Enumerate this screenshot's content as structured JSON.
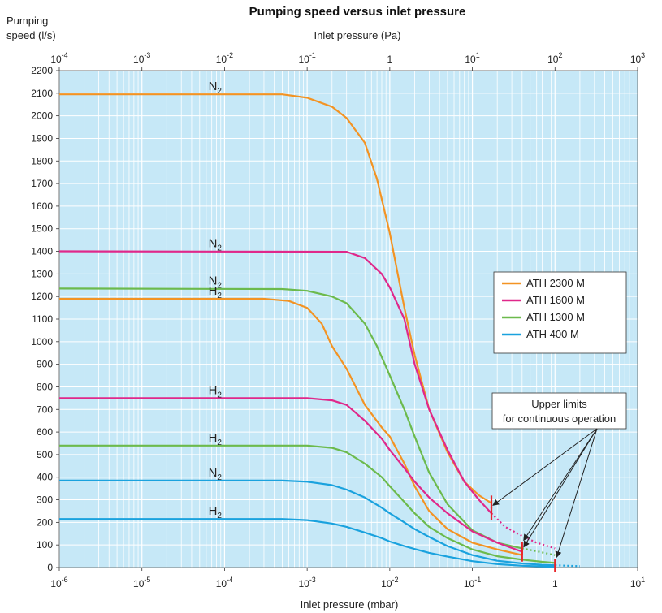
{
  "chart_data": {
    "type": "line",
    "title": "Pumping speed versus inlet pressure",
    "ylabel_line1": "Pumping",
    "ylabel_line2": "speed (l/s)",
    "xlabel_bottom": "Inlet pressure (mbar)",
    "xlabel_top": "Inlet pressure (Pa)",
    "x_scale": "log",
    "xlim": [
      1e-06,
      10
    ],
    "ylim": [
      0,
      2200
    ],
    "yticks": [
      0,
      100,
      200,
      300,
      400,
      500,
      600,
      700,
      800,
      900,
      1000,
      1100,
      1200,
      1300,
      1400,
      1500,
      1600,
      1700,
      1800,
      1900,
      2000,
      2100,
      2200
    ],
    "xticks_bottom": [
      {
        "base": "10",
        "exp": "-6"
      },
      {
        "base": "10",
        "exp": "-5"
      },
      {
        "base": "10",
        "exp": "-4"
      },
      {
        "base": "10",
        "exp": "-3"
      },
      {
        "base": "10",
        "exp": "-2"
      },
      {
        "base": "10",
        "exp": "-1"
      },
      {
        "base": "1",
        "exp": ""
      },
      {
        "base": "10",
        "exp": "1"
      }
    ],
    "xticks_top": [
      {
        "base": "10",
        "exp": "-4"
      },
      {
        "base": "10",
        "exp": "-3"
      },
      {
        "base": "10",
        "exp": "-2"
      },
      {
        "base": "10",
        "exp": "-1"
      },
      {
        "base": "1",
        "exp": ""
      },
      {
        "base": "10",
        "exp": "1"
      },
      {
        "base": "10",
        "exp": "2"
      },
      {
        "base": "10",
        "exp": "3"
      }
    ],
    "grid": true,
    "background": "#c6e8f7",
    "legend_position": "right",
    "legend": [
      {
        "name": "ATH 2300 M",
        "color": "#f39323"
      },
      {
        "name": "ATH 1600 M",
        "color": "#e0288a"
      },
      {
        "name": "ATH 1300 M",
        "color": "#6cba4c"
      },
      {
        "name": "ATH 400 M",
        "color": "#1aa2de"
      }
    ],
    "annotation": {
      "line1": "Upper limits",
      "line2": "for continuous operation"
    },
    "series": [
      {
        "model": "ATH 2300 M",
        "gas": "N2",
        "color": "#f39323",
        "points": [
          [
            1e-06,
            2095
          ],
          [
            0.0005,
            2095
          ],
          [
            0.001,
            2080
          ],
          [
            0.002,
            2040
          ],
          [
            0.003,
            1990
          ],
          [
            0.005,
            1880
          ],
          [
            0.007,
            1720
          ],
          [
            0.01,
            1480
          ],
          [
            0.015,
            1150
          ],
          [
            0.02,
            940
          ],
          [
            0.03,
            700
          ],
          [
            0.05,
            510
          ],
          [
            0.08,
            380
          ],
          [
            0.12,
            320
          ],
          [
            0.17,
            285
          ]
        ],
        "dotted": []
      },
      {
        "model": "ATH 1600 M",
        "gas": "N2",
        "color": "#e0288a",
        "points": [
          [
            1e-06,
            1400
          ],
          [
            0.003,
            1398
          ],
          [
            0.005,
            1370
          ],
          [
            0.008,
            1300
          ],
          [
            0.01,
            1240
          ],
          [
            0.015,
            1100
          ],
          [
            0.02,
            900
          ],
          [
            0.03,
            700
          ],
          [
            0.05,
            520
          ],
          [
            0.08,
            380
          ],
          [
            0.12,
            300
          ],
          [
            0.17,
            240
          ]
        ],
        "dotted": [
          [
            0.17,
            240
          ],
          [
            0.25,
            180
          ],
          [
            0.4,
            140
          ],
          [
            0.6,
            110
          ],
          [
            1,
            85
          ]
        ]
      },
      {
        "model": "ATH 1300 M",
        "gas": "N2",
        "color": "#6cba4c",
        "points": [
          [
            1e-06,
            1235
          ],
          [
            0.0005,
            1233
          ],
          [
            0.001,
            1225
          ],
          [
            0.002,
            1200
          ],
          [
            0.003,
            1170
          ],
          [
            0.005,
            1080
          ],
          [
            0.007,
            980
          ],
          [
            0.01,
            850
          ],
          [
            0.015,
            700
          ],
          [
            0.02,
            580
          ],
          [
            0.03,
            420
          ],
          [
            0.05,
            280
          ],
          [
            0.1,
            165
          ],
          [
            0.2,
            110
          ],
          [
            0.3,
            95
          ],
          [
            0.4,
            85
          ]
        ],
        "dotted": [
          [
            0.4,
            85
          ],
          [
            0.6,
            72
          ],
          [
            1,
            55
          ]
        ]
      },
      {
        "model": "ATH 2300 M",
        "gas": "H2",
        "color": "#f39323",
        "points": [
          [
            1e-06,
            1190
          ],
          [
            0.0003,
            1190
          ],
          [
            0.0006,
            1180
          ],
          [
            0.001,
            1150
          ],
          [
            0.0015,
            1080
          ],
          [
            0.002,
            980
          ],
          [
            0.003,
            880
          ],
          [
            0.005,
            720
          ],
          [
            0.008,
            620
          ],
          [
            0.01,
            580
          ],
          [
            0.015,
            460
          ],
          [
            0.02,
            360
          ],
          [
            0.03,
            250
          ],
          [
            0.05,
            170
          ],
          [
            0.1,
            110
          ],
          [
            0.2,
            80
          ],
          [
            0.4,
            55
          ]
        ],
        "dotted": []
      },
      {
        "model": "ATH 1600 M",
        "gas": "H2",
        "color": "#e0288a",
        "points": [
          [
            1e-06,
            750
          ],
          [
            0.001,
            750
          ],
          [
            0.002,
            740
          ],
          [
            0.003,
            720
          ],
          [
            0.005,
            650
          ],
          [
            0.008,
            570
          ],
          [
            0.01,
            520
          ],
          [
            0.015,
            440
          ],
          [
            0.02,
            380
          ],
          [
            0.03,
            310
          ],
          [
            0.05,
            240
          ],
          [
            0.1,
            160
          ],
          [
            0.2,
            110
          ],
          [
            0.4,
            70
          ]
        ],
        "dotted": []
      },
      {
        "model": "ATH 1300 M",
        "gas": "H2",
        "color": "#6cba4c",
        "points": [
          [
            1e-06,
            540
          ],
          [
            0.001,
            540
          ],
          [
            0.002,
            530
          ],
          [
            0.003,
            510
          ],
          [
            0.005,
            460
          ],
          [
            0.008,
            400
          ],
          [
            0.01,
            360
          ],
          [
            0.015,
            290
          ],
          [
            0.02,
            240
          ],
          [
            0.03,
            180
          ],
          [
            0.05,
            130
          ],
          [
            0.1,
            80
          ],
          [
            0.2,
            50
          ],
          [
            0.4,
            35
          ],
          [
            0.7,
            25
          ],
          [
            1,
            20
          ]
        ],
        "dotted": []
      },
      {
        "model": "ATH 400 M",
        "gas": "N2",
        "color": "#1aa2de",
        "points": [
          [
            1e-06,
            385
          ],
          [
            0.0005,
            385
          ],
          [
            0.001,
            380
          ],
          [
            0.002,
            365
          ],
          [
            0.003,
            345
          ],
          [
            0.005,
            310
          ],
          [
            0.008,
            265
          ],
          [
            0.01,
            240
          ],
          [
            0.015,
            200
          ],
          [
            0.02,
            170
          ],
          [
            0.03,
            135
          ],
          [
            0.05,
            95
          ],
          [
            0.1,
            55
          ],
          [
            0.2,
            30
          ],
          [
            0.4,
            18
          ],
          [
            0.7,
            12
          ],
          [
            1,
            10
          ]
        ],
        "dotted": [
          [
            1,
            10
          ],
          [
            1.4,
            8
          ],
          [
            2,
            6
          ]
        ]
      },
      {
        "model": "ATH 400 M",
        "gas": "H2",
        "color": "#1aa2de",
        "points": [
          [
            1e-06,
            215
          ],
          [
            0.0005,
            215
          ],
          [
            0.001,
            210
          ],
          [
            0.002,
            195
          ],
          [
            0.003,
            180
          ],
          [
            0.005,
            155
          ],
          [
            0.008,
            130
          ],
          [
            0.01,
            115
          ],
          [
            0.015,
            95
          ],
          [
            0.02,
            82
          ],
          [
            0.03,
            65
          ],
          [
            0.05,
            48
          ],
          [
            0.1,
            28
          ],
          [
            0.2,
            15
          ],
          [
            0.4,
            8
          ],
          [
            0.7,
            5
          ],
          [
            1,
            3
          ]
        ],
        "dotted": []
      }
    ],
    "gas_labels": [
      {
        "base": "N",
        "sub": "2",
        "x": 8e-05,
        "y": 2095
      },
      {
        "base": "N",
        "sub": "2",
        "x": 8e-05,
        "y": 1400
      },
      {
        "base": "N",
        "sub": "2",
        "x": 8e-05,
        "y": 1235
      },
      {
        "base": "H",
        "sub": "2",
        "x": 8e-05,
        "y": 1190
      },
      {
        "base": "H",
        "sub": "2",
        "x": 8e-05,
        "y": 750
      },
      {
        "base": "H",
        "sub": "2",
        "x": 8e-05,
        "y": 540
      },
      {
        "base": "N",
        "sub": "2",
        "x": 8e-05,
        "y": 385
      },
      {
        "base": "H",
        "sub": "2",
        "x": 8e-05,
        "y": 215
      }
    ],
    "limit_marks": [
      {
        "x": 0.17,
        "y": 240,
        "color": "#e0288a"
      },
      {
        "x": 0.17,
        "y": 290,
        "color": "#f39323"
      },
      {
        "x": 0.4,
        "y": 85,
        "color": "#6cba4c"
      },
      {
        "x": 0.4,
        "y": 55,
        "color": "#e0288a"
      },
      {
        "x": 1,
        "y": 10,
        "color": "#e0288a"
      }
    ]
  }
}
